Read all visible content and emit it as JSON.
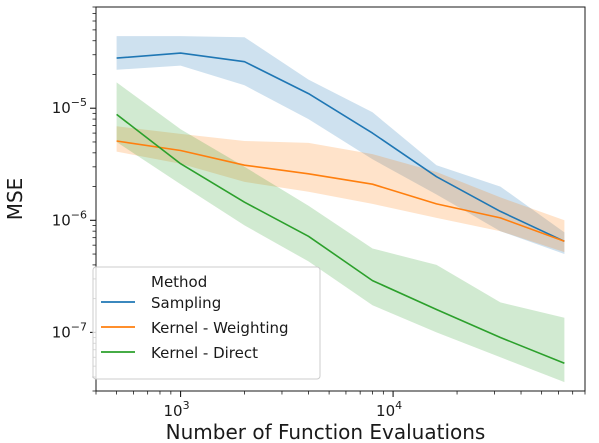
{
  "chart_data": {
    "type": "line",
    "title": "",
    "xlabel": "Number of Function Evaluations",
    "ylabel": "MSE",
    "xscale": "log",
    "yscale": "log",
    "xlim": [
      400,
      80000
    ],
    "ylim": [
      3e-08,
      8e-05
    ],
    "x": [
      500,
      1000,
      2000,
      4000,
      8000,
      16000,
      32000,
      64000
    ],
    "x_ticks": [
      {
        "value": 1000,
        "base": "10",
        "exp": "3"
      },
      {
        "value": 10000,
        "base": "10",
        "exp": "4"
      }
    ],
    "y_ticks": [
      {
        "value": 1e-07,
        "base": "10",
        "exp": "−7"
      },
      {
        "value": 1e-06,
        "base": "10",
        "exp": "−6"
      },
      {
        "value": 1e-05,
        "base": "10",
        "exp": "−5"
      }
    ],
    "grid": false,
    "legend": {
      "title": "Method",
      "placement": "lower-left"
    },
    "series": [
      {
        "name": "Sampling",
        "color": "#1f77b4",
        "values": [
          2.8e-05,
          3.1e-05,
          2.6e-05,
          1.35e-05,
          6e-06,
          2.45e-06,
          1.2e-06,
          6.5e-07
        ],
        "lower": [
          2.2e-05,
          2.4e-05,
          1.6e-05,
          8e-06,
          3.5e-06,
          1.7e-06,
          8e-07,
          5e-07
        ],
        "upper": [
          4.4e-05,
          4.4e-05,
          4.3e-05,
          1.8e-05,
          9.2e-06,
          3.1e-06,
          2e-06,
          7.8e-07
        ]
      },
      {
        "name": "Kernel - Weighting",
        "color": "#ff7f0e",
        "values": [
          5.1e-06,
          4.2e-06,
          3.1e-06,
          2.6e-06,
          2.1e-06,
          1.4e-06,
          1.05e-06,
          6.5e-07
        ],
        "lower": [
          4.1e-06,
          3.2e-06,
          2.2e-06,
          1.8e-06,
          1.4e-06,
          1.05e-06,
          8e-07,
          5.2e-07
        ],
        "upper": [
          6.9e-06,
          5.9e-06,
          5.1e-06,
          4.9e-06,
          3.9e-06,
          2.7e-06,
          1.6e-06,
          1e-06
        ]
      },
      {
        "name": "Kernel - Direct",
        "color": "#2ca02c",
        "values": [
          8.8e-06,
          3.2e-06,
          1.45e-06,
          7.2e-07,
          2.9e-07,
          1.6e-07,
          9e-08,
          5.3e-08
        ],
        "lower": [
          5e-06,
          2.1e-06,
          9e-07,
          4.3e-07,
          1.75e-07,
          1e-07,
          6e-08,
          3.6e-08
        ],
        "upper": [
          1.7e-05,
          6.5e-06,
          3e-06,
          1.35e-06,
          5.6e-07,
          4e-07,
          1.85e-07,
          1.35e-07
        ]
      }
    ]
  }
}
